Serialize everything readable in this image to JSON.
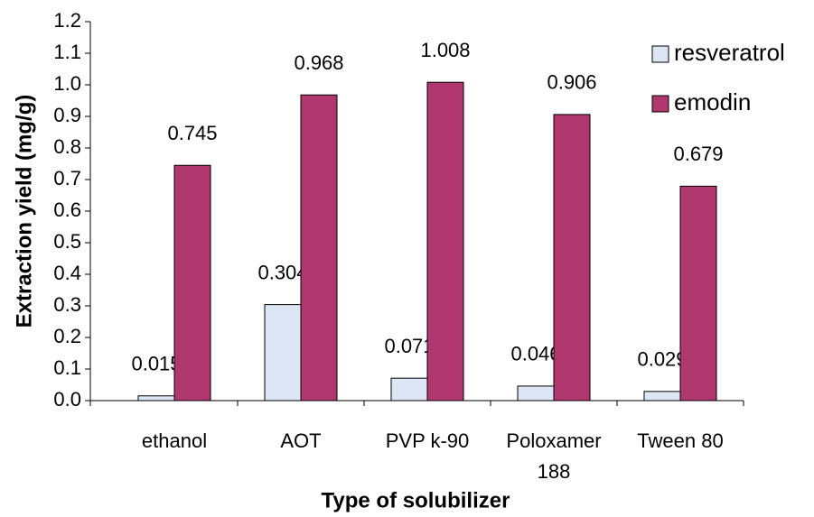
{
  "chart_data": {
    "type": "bar",
    "x_label": "Type of solubilizer",
    "y_label": "Extraction yield (mg/g)",
    "categories": [
      "ethanol",
      "AOT",
      "PVP k-90",
      "Poloxamer 188",
      "Tween 80"
    ],
    "series": [
      {
        "name": "resveratrol",
        "color": "#dce6f4",
        "values": [
          0.015,
          0.304,
          0.071,
          0.046,
          0.029
        ]
      },
      {
        "name": "emodin",
        "color": "#b0386f",
        "values": [
          0.745,
          0.968,
          1.008,
          0.906,
          0.679
        ]
      }
    ],
    "ylim": [
      0,
      1.2
    ],
    "yticks": [
      {
        "value": 0,
        "label": "0.0"
      },
      0.1,
      0.2,
      0.3,
      0.4,
      0.5,
      0.6,
      0.7,
      0.8,
      0.9,
      {
        "value": 1,
        "label": "1.0"
      },
      1.1,
      1.2
    ],
    "grid": false,
    "legend": "upper right"
  }
}
